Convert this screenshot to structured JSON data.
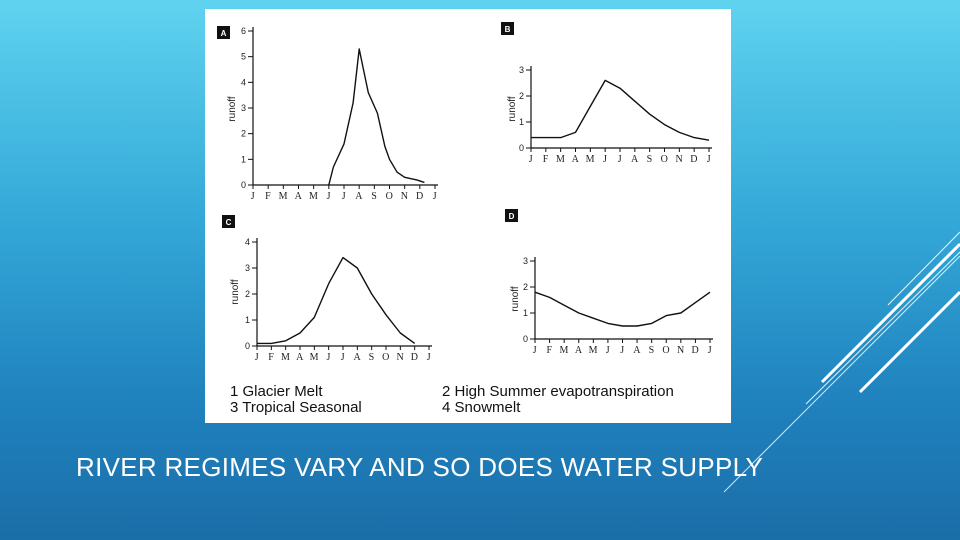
{
  "slide": {
    "title": "RIVER REGIMES VARY AND SO DOES WATER SUPPLY"
  },
  "legend": {
    "item_1": "1 Glacier Melt",
    "item_2": "2 High Summer evapotranspiration",
    "item_3": "3 Tropical Seasonal",
    "item_4": "4 Snowmelt"
  },
  "colors": {
    "background_top": "#5fd3ef",
    "background_bottom": "#1b6ea8",
    "line": "#111111",
    "panel": "#ffffff"
  },
  "chart_data": [
    {
      "type": "line",
      "panel_label": "A",
      "ylabel": "runoff",
      "ylim": [
        0,
        6
      ],
      "yticks": [
        "0",
        "1",
        "2",
        "3",
        "4",
        "5",
        "6"
      ],
      "categories": [
        "J",
        "F",
        "M",
        "A",
        "M",
        "J",
        "J",
        "A",
        "S",
        "O",
        "N",
        "D",
        "J"
      ],
      "x": [
        5.0,
        5.3,
        6.0,
        6.6,
        7.0,
        7.6,
        8.2,
        8.7,
        9.0,
        9.5,
        10.0,
        10.8,
        11.3
      ],
      "values": [
        0,
        0.7,
        1.6,
        3.2,
        5.3,
        3.6,
        2.8,
        1.5,
        1.0,
        0.5,
        0.3,
        0.2,
        0.1
      ]
    },
    {
      "type": "line",
      "panel_label": "B",
      "ylabel": "runoff",
      "ylim": [
        0,
        3
      ],
      "yticks": [
        "0",
        "1",
        "2",
        "3"
      ],
      "categories": [
        "J",
        "F",
        "M",
        "A",
        "M",
        "J",
        "J",
        "A",
        "S",
        "O",
        "N",
        "D",
        "J"
      ],
      "x": [
        0,
        0.5,
        1,
        2,
        3,
        4,
        5,
        6,
        7,
        8,
        9,
        10,
        11,
        12
      ],
      "values": [
        0.4,
        0.4,
        0.4,
        0.4,
        0.6,
        1.6,
        2.6,
        2.3,
        1.8,
        1.3,
        0.9,
        0.6,
        0.4,
        0.3
      ]
    },
    {
      "type": "line",
      "panel_label": "C",
      "ylabel": "runoff",
      "ylim": [
        0,
        4
      ],
      "yticks": [
        "0",
        "1",
        "2",
        "3",
        "4"
      ],
      "categories": [
        "J",
        "F",
        "M",
        "A",
        "M",
        "J",
        "J",
        "A",
        "S",
        "O",
        "N",
        "D",
        "J"
      ],
      "x": [
        0,
        1,
        2,
        3,
        4,
        5,
        6,
        7,
        8,
        9,
        10,
        11
      ],
      "values": [
        0.1,
        0.1,
        0.2,
        0.5,
        1.1,
        2.4,
        3.4,
        3.0,
        2.0,
        1.2,
        0.5,
        0.1
      ]
    },
    {
      "type": "line",
      "panel_label": "D",
      "ylabel": "runoff",
      "ylim": [
        0,
        3
      ],
      "yticks": [
        "0",
        "1",
        "2",
        "3"
      ],
      "categories": [
        "J",
        "F",
        "M",
        "A",
        "M",
        "J",
        "J",
        "A",
        "S",
        "O",
        "N",
        "D",
        "J"
      ],
      "x": [
        0,
        1,
        2,
        3,
        4,
        5,
        6,
        7,
        8,
        9,
        10,
        11,
        12
      ],
      "values": [
        1.8,
        1.6,
        1.3,
        1.0,
        0.8,
        0.6,
        0.5,
        0.5,
        0.6,
        0.9,
        1.0,
        1.4,
        1.8
      ]
    }
  ]
}
